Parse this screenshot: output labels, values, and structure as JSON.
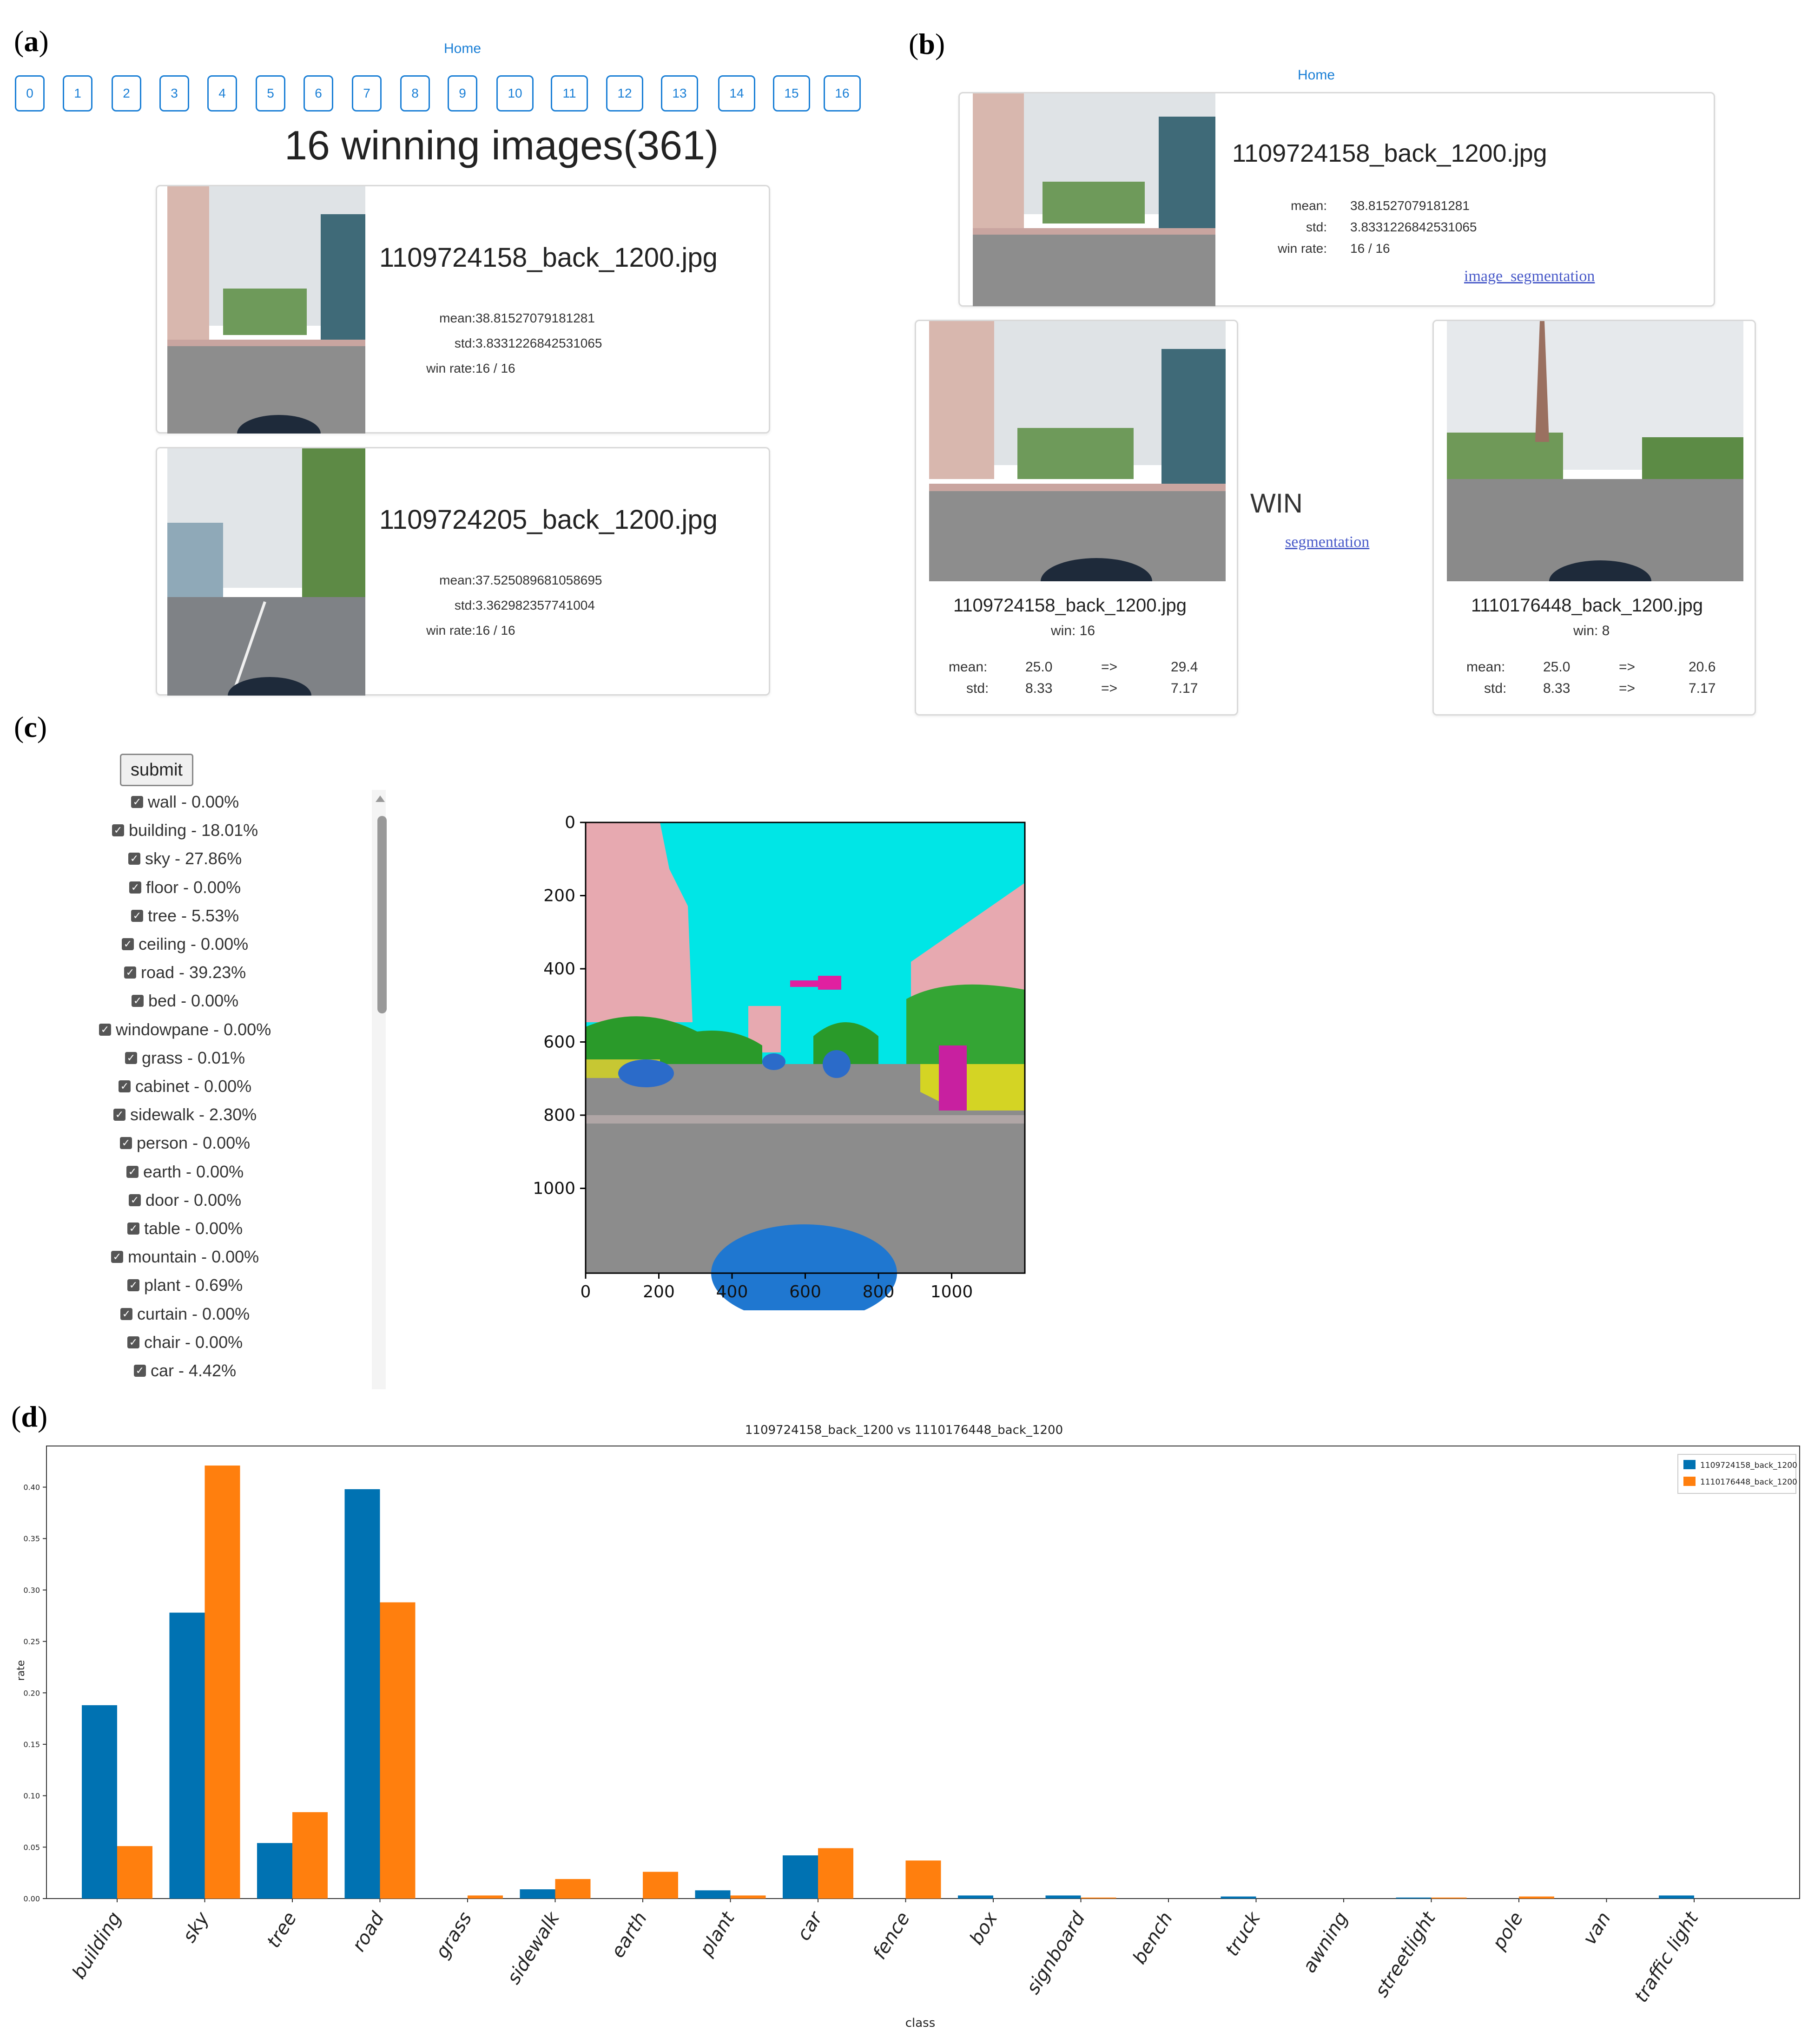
{
  "panels": {
    "a": "a",
    "b": "b",
    "c": "c",
    "d": "d"
  },
  "panel_a": {
    "home": "Home",
    "nav": [
      "0",
      "1",
      "2",
      "3",
      "4",
      "5",
      "6",
      "7",
      "8",
      "9",
      "10",
      "11",
      "12",
      "13",
      "14",
      "15",
      "16"
    ],
    "heading": "16 winning images(361)",
    "cards": [
      {
        "filename": "1109724158_back_1200.jpg",
        "mean_label": "mean:",
        "mean": "38.81527079181281",
        "std_label": "std:",
        "std": "3.8331226842531065",
        "win_label": "win rate:",
        "win": "16 / 16"
      },
      {
        "filename": "1109724205_back_1200.jpg",
        "mean_label": "mean:",
        "mean": "37.525089681058695",
        "std_label": "std:",
        "std": "3.362982357741004",
        "win_label": "win rate:",
        "win": "16 / 16"
      }
    ]
  },
  "panel_b": {
    "home": "Home",
    "top": {
      "filename": "1109724158_back_1200.jpg",
      "mean_label": "mean:",
      "mean": "38.81527079181281",
      "std_label": "std:",
      "std": "3.8331226842531065",
      "win_label": "win rate:",
      "win": "16 / 16",
      "link": "image_segmentation"
    },
    "win_text": "WIN",
    "seg_link": "segmentation",
    "left": {
      "filename": "1109724158_back_1200.jpg",
      "win": "win: 16",
      "mean_label": "mean:",
      "mean_a": "25.0",
      "arrow": "=>",
      "mean_b": "29.4",
      "std_label": "std:",
      "std_a": "8.33",
      "std_b": "7.17"
    },
    "right": {
      "filename": "1110176448_back_1200.jpg",
      "win": "win: 8",
      "mean_label": "mean:",
      "mean_a": "25.0",
      "arrow": "=>",
      "mean_b": "20.6",
      "std_label": "std:",
      "std_a": "8.33",
      "std_b": "7.17"
    }
  },
  "panel_c": {
    "submit": "submit",
    "classes": [
      "wall - 0.00%",
      "building - 18.01%",
      "sky - 27.86%",
      "floor - 0.00%",
      "tree - 5.53%",
      "ceiling - 0.00%",
      "road - 39.23%",
      "bed - 0.00%",
      "windowpane - 0.00%",
      "grass - 0.01%",
      "cabinet - 0.00%",
      "sidewalk - 2.30%",
      "person - 0.00%",
      "earth - 0.00%",
      "door - 0.00%",
      "table - 0.00%",
      "mountain - 0.00%",
      "plant - 0.69%",
      "curtain - 0.00%",
      "chair - 0.00%",
      "car - 4.42%"
    ],
    "plot_y_ticks": [
      "0",
      "200",
      "400",
      "600",
      "800",
      "1000"
    ],
    "plot_x_ticks": [
      "0",
      "200",
      "400",
      "600",
      "800",
      "1000"
    ]
  },
  "chart_data": {
    "type": "bar",
    "title": "1109724158_back_1200 vs 1110176448_back_1200",
    "xlabel": "class",
    "ylabel": "rate",
    "ylim": [
      0,
      0.44
    ],
    "y_ticks": [
      "0.00",
      "0.05",
      "0.10",
      "0.15",
      "0.20",
      "0.25",
      "0.30",
      "0.35",
      "0.40"
    ],
    "categories": [
      "building",
      "sky",
      "tree",
      "road",
      "grass",
      "sidewalk",
      "earth",
      "plant",
      "car",
      "fence",
      "box",
      "signboard",
      "bench",
      "truck",
      "awning",
      "streetlight",
      "pole",
      "van",
      "traffic light"
    ],
    "series": [
      {
        "name": "1109724158_back_1200",
        "color": "#0072b2",
        "values": [
          0.188,
          0.278,
          0.054,
          0.398,
          0.0,
          0.009,
          0.0,
          0.008,
          0.042,
          0.0,
          0.003,
          0.003,
          0.0,
          0.002,
          0.0,
          0.001,
          0.0,
          0.0,
          0.003
        ]
      },
      {
        "name": "1110176448_back_1200",
        "color": "#ff7f0e",
        "values": [
          0.051,
          0.421,
          0.084,
          0.288,
          0.003,
          0.019,
          0.026,
          0.003,
          0.049,
          0.037,
          0.0,
          0.001,
          0.0,
          0.0,
          0.0,
          0.001,
          0.002,
          0.0,
          0.0
        ]
      }
    ],
    "legend": "top-right",
    "grid": false
  }
}
